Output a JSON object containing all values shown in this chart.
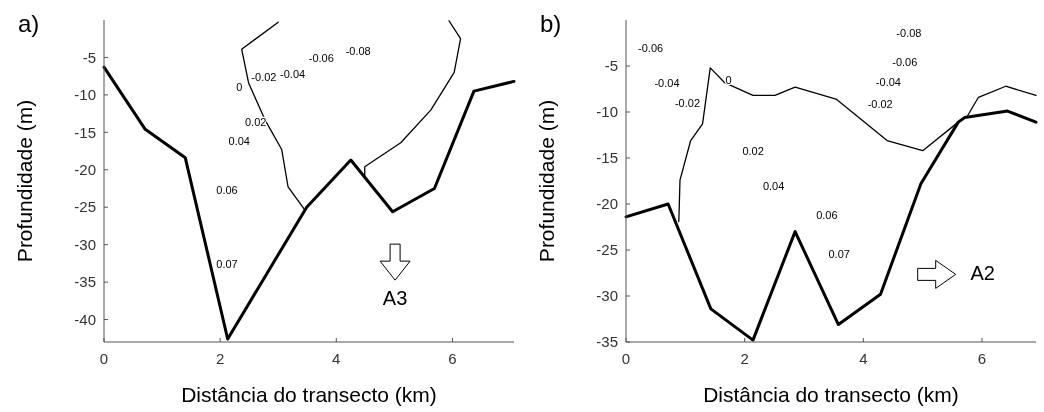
{
  "chart_data": [
    {
      "type": "line",
      "title": "a)",
      "xlabel": "Distância do transecto (km)",
      "ylabel": "Profundidade (m)",
      "xlim": [
        0,
        7.06
      ],
      "ylim": [
        -43,
        0
      ],
      "xticks": [
        0,
        2,
        4,
        6
      ],
      "yticks": [
        -5,
        -10,
        -15,
        -20,
        -25,
        -30,
        -35,
        -40
      ],
      "grid": false,
      "marker": "none",
      "line_style": "solid",
      "series": [
        {
          "color": "#000000",
          "x": [
            0,
            0.71,
            1.4,
            2.13,
            3.49,
            4.25,
            4.97,
            5.69,
            6.37,
            7.06
          ],
          "values": [
            -6.3,
            -14.6,
            -18.4,
            -42.6,
            -25.0,
            -18.7,
            -25.6,
            -22.5,
            -9.5,
            -8.2
          ]
        },
        {
          "color": "#000000",
          "x": [
            3.0,
            2.37,
            2.49,
            2.77,
            3.06,
            3.17,
            3.46
          ],
          "values": [
            -0.3,
            -3.9,
            -8.4,
            -13.3,
            -17.3,
            -22.3,
            -25.4
          ]
        },
        {
          "color": "#000000",
          "x": [
            5.94,
            6.14,
            6.03,
            5.63,
            5.11,
            4.49,
            4.49
          ],
          "values": [
            -0.1,
            -2.5,
            -7.0,
            -12.0,
            -16.4,
            -19.6,
            -21.1
          ]
        }
      ],
      "annotations": [
        "0",
        "-0.02",
        "-0.04",
        "-0.06",
        "-0.08",
        "0.02",
        "0.04",
        "0.06",
        "0.07",
        "A3"
      ]
    },
    {
      "type": "line",
      "title": "b)",
      "xlabel": "Distância do transecto (km)",
      "ylabel": "Profundidade (m)",
      "xlim": [
        0,
        6.91
      ],
      "ylim": [
        -35,
        0
      ],
      "xticks": [
        0,
        2,
        4,
        6
      ],
      "yticks": [
        -5,
        -10,
        -15,
        -20,
        -25,
        -30,
        -35
      ],
      "grid": false,
      "marker": "none",
      "line_style": "solid",
      "series": [
        {
          "color": "#000000",
          "x": [
            0,
            0.71,
            1.43,
            2.14,
            2.85,
            3.58,
            4.29,
            4.97,
            5.6,
            5.71,
            6.43,
            6.91
          ],
          "values": [
            -21.4,
            -20.0,
            -31.4,
            -34.8,
            -23.0,
            -33.1,
            -29.8,
            -17.8,
            -11.1,
            -10.6,
            -9.9,
            -11.1
          ]
        },
        {
          "color": "#000000",
          "x": [
            0.89,
            0.91,
            1.09,
            1.29,
            1.42,
            1.66,
            2.14,
            2.51,
            2.85,
            3.54,
            4.4,
            5.0,
            5.6
          ],
          "values": [
            -21.9,
            -17.4,
            -13.1,
            -11.3,
            -5.2,
            -6.8,
            -8.2,
            -8.2,
            -7.3,
            -8.6,
            -13.1,
            -14.2,
            -11.1
          ]
        },
        {
          "color": "#000000",
          "x": [
            5.74,
            5.94,
            6.4,
            6.91
          ],
          "values": [
            -10.6,
            -8.4,
            -7.2,
            -8.2
          ]
        }
      ],
      "annotations": [
        "-0.06",
        "-0.04",
        "-0.02",
        "0",
        "-0.08",
        "-0.06",
        "-0.04",
        "-0.02",
        "0.02",
        "0.04",
        "0.06",
        "0.07",
        "A2"
      ]
    }
  ]
}
